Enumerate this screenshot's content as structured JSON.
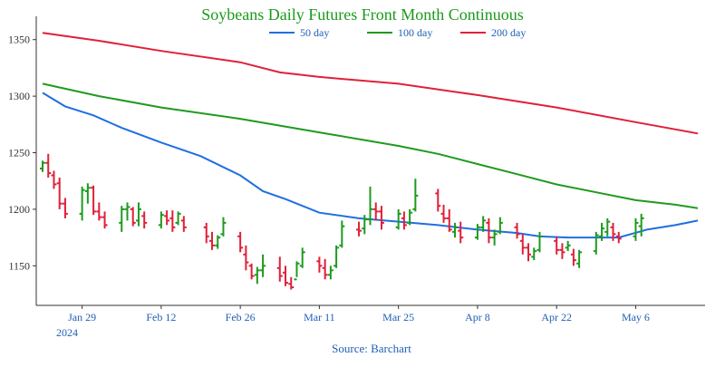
{
  "chart_data": {
    "type": "ohlc",
    "title": "Soybeans Daily Futures Front Month Continuous",
    "source": "Source: Barchart",
    "colors": {
      "title": "#1a9a1a",
      "source": "#1f5fb4",
      "up_bar": "#1f9a1f",
      "down_bar": "#e0203a",
      "axis": "#333333"
    },
    "legend_position": "top-center",
    "grid": false,
    "x_axis": {
      "ticks": [
        "Jan 29",
        "Feb 12",
        "Feb 26",
        "Mar 11",
        "Mar 25",
        "Apr 8",
        "Apr 22",
        "May 6"
      ],
      "year_label": "2024",
      "range": [
        "2024-01-22",
        "2024-05-17"
      ]
    },
    "y_axis": {
      "ticks": [
        1150,
        1200,
        1250,
        1300,
        1350
      ],
      "range": [
        1115,
        1365
      ]
    },
    "moving_averages": [
      {
        "name": "50 day",
        "color": "#1f6fe0",
        "points": [
          [
            "2024-01-22",
            1303
          ],
          [
            "2024-01-23",
            1300
          ],
          [
            "2024-01-26",
            1291
          ],
          [
            "2024-01-31",
            1283
          ],
          [
            "2024-02-05",
            1272
          ],
          [
            "2024-02-12",
            1259
          ],
          [
            "2024-02-19",
            1247
          ],
          [
            "2024-02-26",
            1230
          ],
          [
            "2024-03-01",
            1216
          ],
          [
            "2024-03-05",
            1209
          ],
          [
            "2024-03-11",
            1197
          ],
          [
            "2024-03-18",
            1192
          ],
          [
            "2024-03-25",
            1189
          ],
          [
            "2024-04-01",
            1186
          ],
          [
            "2024-04-08",
            1182
          ],
          [
            "2024-04-15",
            1179
          ],
          [
            "2024-04-19",
            1176
          ],
          [
            "2024-04-24",
            1175
          ],
          [
            "2024-05-01",
            1175
          ],
          [
            "2024-05-03",
            1175
          ],
          [
            "2024-05-08",
            1182
          ],
          [
            "2024-05-13",
            1186
          ],
          [
            "2024-05-17",
            1190
          ]
        ]
      },
      {
        "name": "100 day",
        "color": "#1f9a1f",
        "points": [
          [
            "2024-01-22",
            1311
          ],
          [
            "2024-02-01",
            1300
          ],
          [
            "2024-02-12",
            1290
          ],
          [
            "2024-02-26",
            1280
          ],
          [
            "2024-03-11",
            1268
          ],
          [
            "2024-03-25",
            1256
          ],
          [
            "2024-04-01",
            1249
          ],
          [
            "2024-04-08",
            1240
          ],
          [
            "2024-04-15",
            1231
          ],
          [
            "2024-04-22",
            1222
          ],
          [
            "2024-04-29",
            1215
          ],
          [
            "2024-05-06",
            1208
          ],
          [
            "2024-05-13",
            1204
          ],
          [
            "2024-05-17",
            1201
          ]
        ]
      },
      {
        "name": "200 day",
        "color": "#e0203a",
        "points": [
          [
            "2024-01-22",
            1356
          ],
          [
            "2024-02-01",
            1349
          ],
          [
            "2024-02-12",
            1340
          ],
          [
            "2024-02-26",
            1330
          ],
          [
            "2024-03-04",
            1321
          ],
          [
            "2024-03-11",
            1317
          ],
          [
            "2024-03-25",
            1311
          ],
          [
            "2024-04-08",
            1301
          ],
          [
            "2024-04-22",
            1290
          ],
          [
            "2024-05-06",
            1277
          ],
          [
            "2024-05-17",
            1267
          ]
        ]
      }
    ],
    "ohlc": [
      [
        "2024-01-22",
        1236,
        1243,
        1233,
        1241
      ],
      [
        "2024-01-23",
        1241,
        1249,
        1228,
        1232
      ],
      [
        "2024-01-24",
        1230,
        1234,
        1218,
        1222
      ],
      [
        "2024-01-25",
        1223,
        1228,
        1200,
        1205
      ],
      [
        "2024-01-26",
        1205,
        1210,
        1192,
        1196
      ],
      [
        "2024-01-29",
        1196,
        1220,
        1190,
        1217
      ],
      [
        "2024-01-30",
        1216,
        1223,
        1205,
        1219
      ],
      [
        "2024-01-31",
        1219,
        1221,
        1195,
        1198
      ],
      [
        "2024-02-01",
        1198,
        1206,
        1190,
        1193
      ],
      [
        "2024-02-02",
        1193,
        1198,
        1183,
        1186
      ],
      [
        "2024-02-05",
        1188,
        1203,
        1180,
        1200
      ],
      [
        "2024-02-06",
        1200,
        1206,
        1190,
        1202
      ],
      [
        "2024-02-07",
        1200,
        1202,
        1185,
        1188
      ],
      [
        "2024-02-08",
        1190,
        1206,
        1185,
        1200
      ],
      [
        "2024-02-09",
        1194,
        1198,
        1183,
        1188
      ],
      [
        "2024-02-12",
        1186,
        1198,
        1183,
        1195
      ],
      [
        "2024-02-13",
        1194,
        1199,
        1186,
        1190
      ],
      [
        "2024-02-14",
        1192,
        1199,
        1180,
        1184
      ],
      [
        "2024-02-15",
        1188,
        1198,
        1186,
        1196
      ],
      [
        "2024-02-16",
        1190,
        1194,
        1180,
        1184
      ],
      [
        "2024-02-20",
        1184,
        1188,
        1170,
        1176
      ],
      [
        "2024-02-21",
        1172,
        1180,
        1164,
        1168
      ],
      [
        "2024-02-22",
        1168,
        1177,
        1165,
        1175
      ],
      [
        "2024-02-23",
        1178,
        1193,
        1176,
        1188
      ],
      [
        "2024-02-26",
        1176,
        1180,
        1162,
        1166
      ],
      [
        "2024-02-27",
        1160,
        1168,
        1146,
        1153
      ],
      [
        "2024-02-28",
        1150,
        1152,
        1138,
        1141
      ],
      [
        "2024-02-29",
        1142,
        1149,
        1134,
        1146
      ],
      [
        "2024-03-01",
        1146,
        1160,
        1140,
        1150
      ],
      [
        "2024-03-04",
        1148,
        1158,
        1136,
        1141
      ],
      [
        "2024-03-05",
        1144,
        1150,
        1132,
        1135
      ],
      [
        "2024-03-06",
        1134,
        1140,
        1129,
        1131
      ],
      [
        "2024-03-07",
        1138,
        1154,
        1140,
        1152
      ],
      [
        "2024-03-08",
        1150,
        1166,
        1148,
        1162
      ],
      [
        "2024-03-11",
        1154,
        1158,
        1144,
        1150
      ],
      [
        "2024-03-12",
        1148,
        1156,
        1138,
        1142
      ],
      [
        "2024-03-13",
        1142,
        1150,
        1138,
        1146
      ],
      [
        "2024-03-14",
        1150,
        1168,
        1148,
        1166
      ],
      [
        "2024-03-15",
        1168,
        1190,
        1166,
        1185
      ],
      [
        "2024-03-18",
        1182,
        1189,
        1176,
        1181
      ],
      [
        "2024-03-19",
        1183,
        1195,
        1178,
        1191
      ],
      [
        "2024-03-20",
        1191,
        1220,
        1186,
        1200
      ],
      [
        "2024-03-21",
        1200,
        1206,
        1190,
        1198
      ],
      [
        "2024-03-22",
        1198,
        1203,
        1182,
        1188
      ],
      [
        "2024-03-25",
        1184,
        1200,
        1182,
        1196
      ],
      [
        "2024-03-26",
        1192,
        1198,
        1182,
        1186
      ],
      [
        "2024-03-27",
        1188,
        1200,
        1186,
        1197
      ],
      [
        "2024-03-28",
        1200,
        1227,
        1198,
        1212
      ],
      [
        "2024-04-01",
        1214,
        1218,
        1198,
        1203
      ],
      [
        "2024-04-02",
        1196,
        1204,
        1188,
        1192
      ],
      [
        "2024-04-03",
        1192,
        1200,
        1180,
        1182
      ],
      [
        "2024-04-04",
        1180,
        1188,
        1175,
        1184
      ],
      [
        "2024-04-05",
        1181,
        1189,
        1170,
        1175
      ],
      [
        "2024-04-08",
        1175,
        1187,
        1173,
        1184
      ],
      [
        "2024-04-09",
        1184,
        1194,
        1180,
        1190
      ],
      [
        "2024-04-10",
        1188,
        1192,
        1170,
        1175
      ],
      [
        "2024-04-11",
        1175,
        1182,
        1168,
        1178
      ],
      [
        "2024-04-12",
        1180,
        1193,
        1178,
        1188
      ],
      [
        "2024-04-15",
        1184,
        1188,
        1174,
        1178
      ],
      [
        "2024-04-16",
        1172,
        1178,
        1160,
        1166
      ],
      [
        "2024-04-17",
        1166,
        1170,
        1154,
        1160
      ],
      [
        "2024-04-18",
        1158,
        1166,
        1155,
        1163
      ],
      [
        "2024-04-19",
        1164,
        1180,
        1162,
        1176
      ],
      [
        "2024-04-22",
        1172,
        1176,
        1160,
        1164
      ],
      [
        "2024-04-23",
        1164,
        1170,
        1156,
        1162
      ],
      [
        "2024-04-24",
        1166,
        1172,
        1163,
        1168
      ],
      [
        "2024-04-25",
        1160,
        1165,
        1150,
        1155
      ],
      [
        "2024-04-26",
        1152,
        1164,
        1148,
        1162
      ],
      [
        "2024-04-29",
        1163,
        1180,
        1160,
        1177
      ],
      [
        "2024-04-30",
        1176,
        1188,
        1172,
        1183
      ],
      [
        "2024-05-01",
        1180,
        1192,
        1176,
        1189
      ],
      [
        "2024-05-02",
        1184,
        1188,
        1172,
        1178
      ],
      [
        "2024-05-03",
        1176,
        1180,
        1170,
        1174
      ],
      [
        "2024-05-06",
        1176,
        1192,
        1172,
        1188
      ],
      [
        "2024-05-07",
        1185,
        1196,
        1176,
        1192
      ]
    ]
  }
}
